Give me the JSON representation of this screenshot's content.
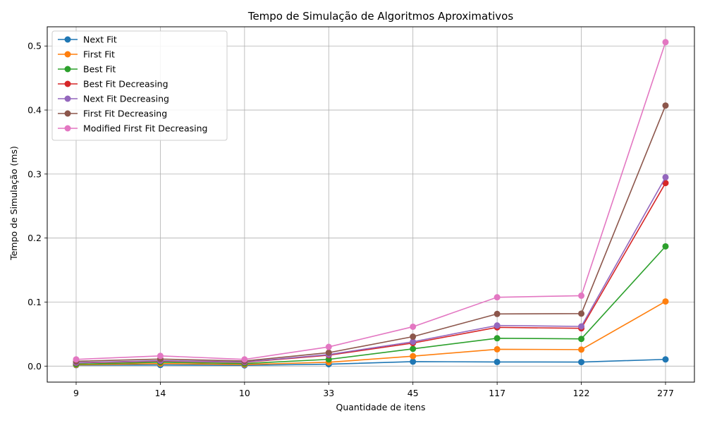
{
  "chart_data": {
    "type": "line",
    "title": "Tempo de Simulação de Algoritmos Aproximativos",
    "xlabel": "Quantidade de itens",
    "ylabel": "Tempo de Simulação (ms)",
    "categories": [
      "9",
      "14",
      "10",
      "33",
      "45",
      "117",
      "122",
      "277"
    ],
    "ylim": [
      -0.025,
      0.53
    ],
    "yticks": [
      0.0,
      0.1,
      0.2,
      0.3,
      0.4,
      0.5
    ],
    "ytick_labels": [
      "0.0",
      "0.1",
      "0.2",
      "0.3",
      "0.4",
      "0.5"
    ],
    "grid": true,
    "legend_position": "top-left",
    "marker": "circle",
    "series": [
      {
        "name": "Next Fit",
        "color": "#1f77b4",
        "values": [
          0.0015,
          0.0018,
          0.0012,
          0.003,
          0.007,
          0.0065,
          0.0063,
          0.0105
        ]
      },
      {
        "name": "First Fit",
        "color": "#ff7f0e",
        "values": [
          0.002,
          0.004,
          0.0025,
          0.006,
          0.0155,
          0.0263,
          0.0258,
          0.101
        ]
      },
      {
        "name": "Best Fit",
        "color": "#2ca02c",
        "values": [
          0.003,
          0.006,
          0.004,
          0.0105,
          0.027,
          0.0435,
          0.0425,
          0.187
        ]
      },
      {
        "name": "Best Fit Decreasing",
        "color": "#d62728",
        "values": [
          0.005,
          0.008,
          0.006,
          0.017,
          0.036,
          0.0605,
          0.059,
          0.286
        ]
      },
      {
        "name": "Next Fit Decreasing",
        "color": "#9467bd",
        "values": [
          0.0055,
          0.0085,
          0.0065,
          0.018,
          0.038,
          0.0635,
          0.062,
          0.295
        ]
      },
      {
        "name": "First Fit Decreasing",
        "color": "#8c564b",
        "values": [
          0.0075,
          0.011,
          0.008,
          0.021,
          0.046,
          0.0815,
          0.082,
          0.407
        ]
      },
      {
        "name": "Modified First Fit Decreasing",
        "color": "#e377c2",
        "values": [
          0.0105,
          0.016,
          0.0105,
          0.03,
          0.0615,
          0.1075,
          0.11,
          0.506
        ]
      }
    ]
  }
}
